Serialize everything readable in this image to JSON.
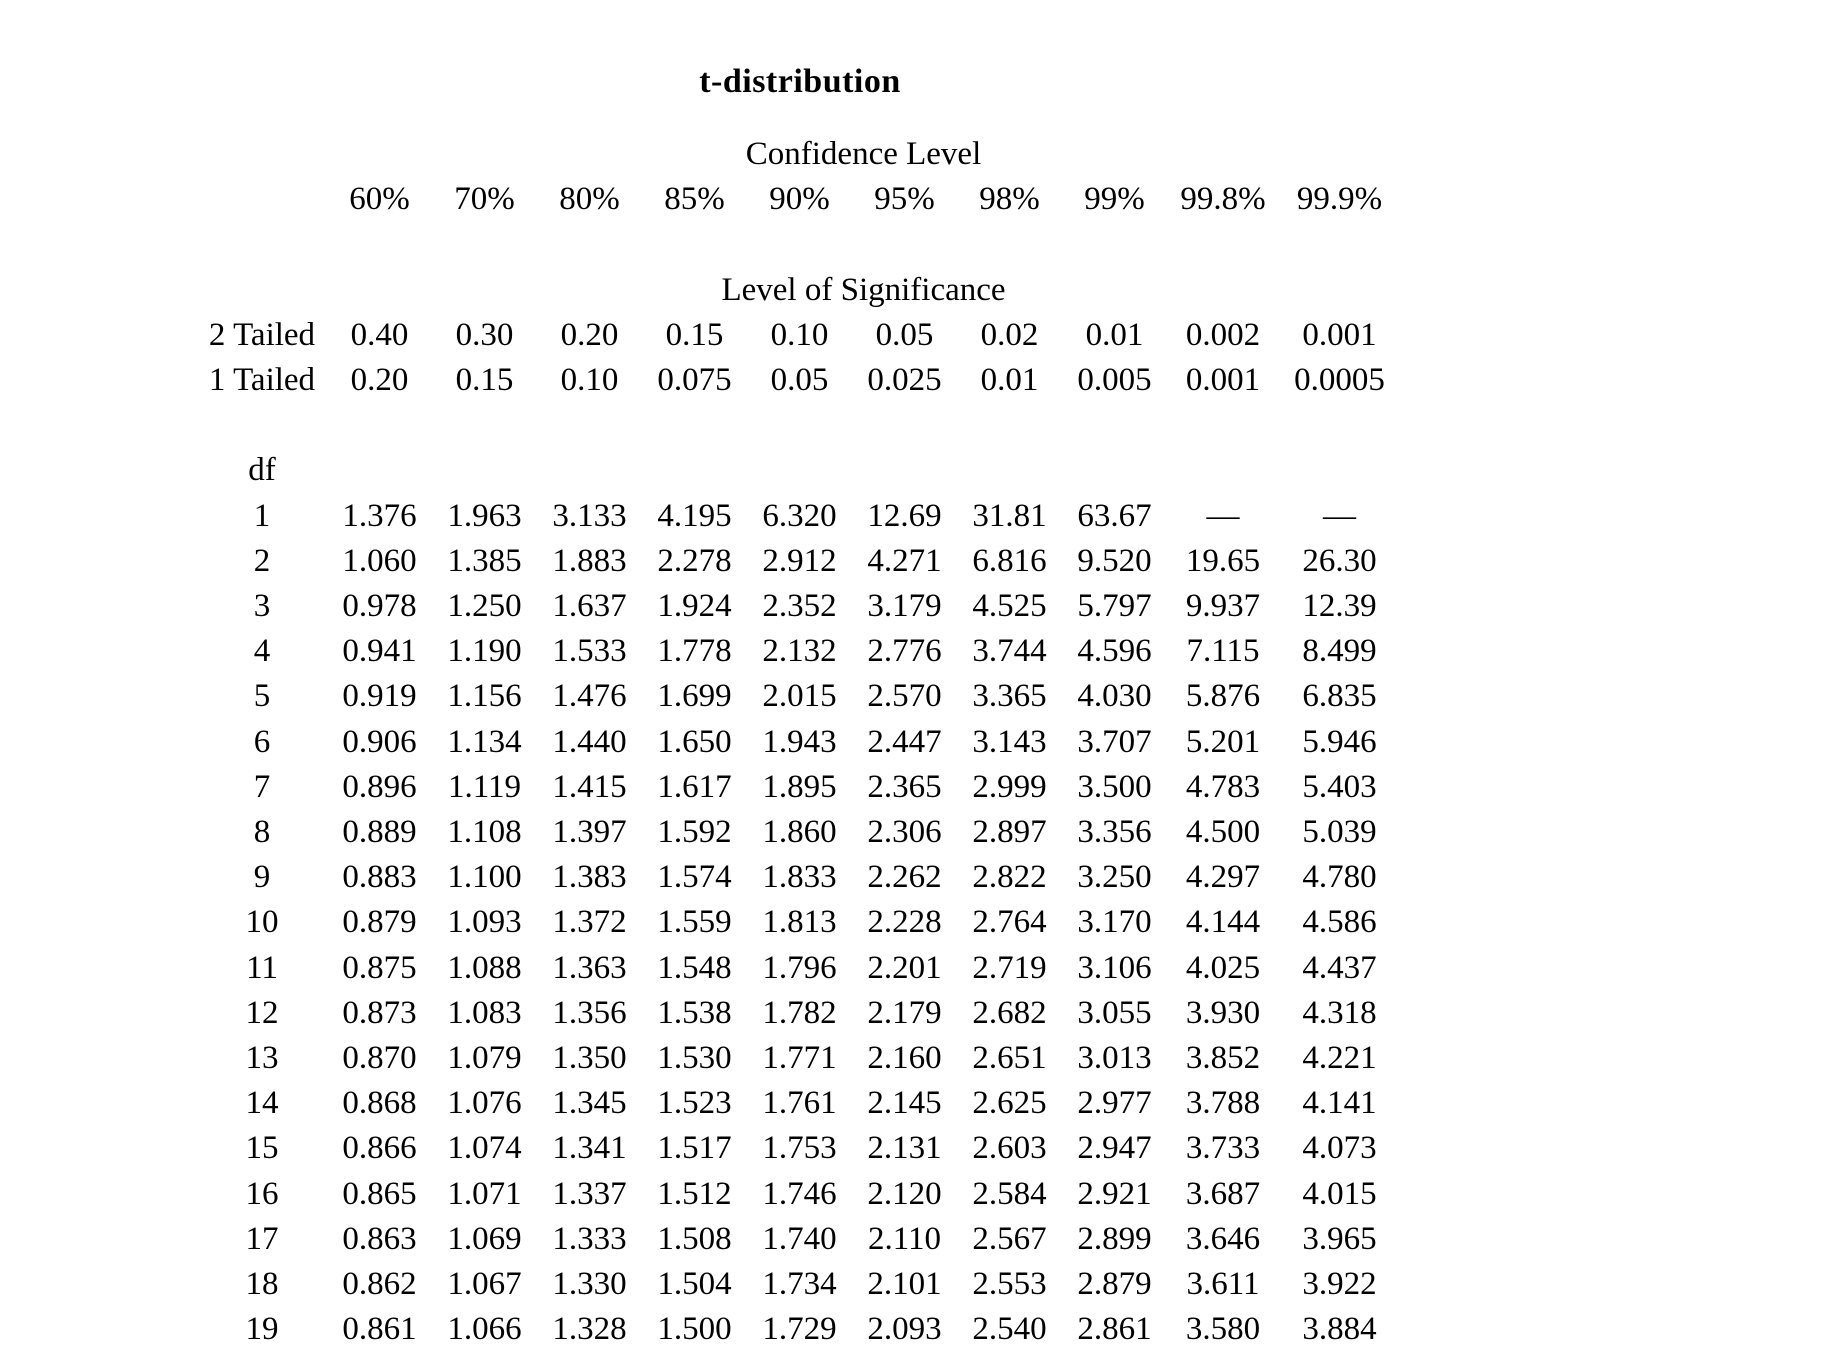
{
  "page": {
    "title": "t-distribution",
    "confidence_header": "Confidence Level",
    "significance_header": "Level of Significance",
    "df_label": "df",
    "text_color": "#000000",
    "background_color": "#ffffff"
  },
  "table": {
    "confidence_levels": [
      "60%",
      "70%",
      "80%",
      "85%",
      "90%",
      "95%",
      "98%",
      "99%",
      "99.8%",
      "99.9%"
    ],
    "two_tailed": {
      "label": "2 Tailed",
      "values": [
        "0.40",
        "0.30",
        "0.20",
        "0.15",
        "0.10",
        "0.05",
        "0.02",
        "0.01",
        "0.002",
        "0.001"
      ]
    },
    "one_tailed": {
      "label": "1 Tailed",
      "values": [
        "0.20",
        "0.15",
        "0.10",
        "0.075",
        "0.05",
        "0.025",
        "0.01",
        "0.005",
        "0.001",
        "0.0005"
      ]
    },
    "rows": [
      {
        "df": "1",
        "values": [
          "1.376",
          "1.963",
          "3.133",
          "4.195",
          "6.320",
          "12.69",
          "31.81",
          "63.67",
          "—",
          "—"
        ]
      },
      {
        "df": "2",
        "values": [
          "1.060",
          "1.385",
          "1.883",
          "2.278",
          "2.912",
          "4.271",
          "6.816",
          "9.520",
          "19.65",
          "26.30"
        ]
      },
      {
        "df": "3",
        "values": [
          "0.978",
          "1.250",
          "1.637",
          "1.924",
          "2.352",
          "3.179",
          "4.525",
          "5.797",
          "9.937",
          "12.39"
        ]
      },
      {
        "df": "4",
        "values": [
          "0.941",
          "1.190",
          "1.533",
          "1.778",
          "2.132",
          "2.776",
          "3.744",
          "4.596",
          "7.115",
          "8.499"
        ]
      },
      {
        "df": "5",
        "values": [
          "0.919",
          "1.156",
          "1.476",
          "1.699",
          "2.015",
          "2.570",
          "3.365",
          "4.030",
          "5.876",
          "6.835"
        ]
      },
      {
        "df": "6",
        "values": [
          "0.906",
          "1.134",
          "1.440",
          "1.650",
          "1.943",
          "2.447",
          "3.143",
          "3.707",
          "5.201",
          "5.946"
        ]
      },
      {
        "df": "7",
        "values": [
          "0.896",
          "1.119",
          "1.415",
          "1.617",
          "1.895",
          "2.365",
          "2.999",
          "3.500",
          "4.783",
          "5.403"
        ]
      },
      {
        "df": "8",
        "values": [
          "0.889",
          "1.108",
          "1.397",
          "1.592",
          "1.860",
          "2.306",
          "2.897",
          "3.356",
          "4.500",
          "5.039"
        ]
      },
      {
        "df": "9",
        "values": [
          "0.883",
          "1.100",
          "1.383",
          "1.574",
          "1.833",
          "2.262",
          "2.822",
          "3.250",
          "4.297",
          "4.780"
        ]
      },
      {
        "df": "10",
        "values": [
          "0.879",
          "1.093",
          "1.372",
          "1.559",
          "1.813",
          "2.228",
          "2.764",
          "3.170",
          "4.144",
          "4.586"
        ]
      },
      {
        "df": "11",
        "values": [
          "0.875",
          "1.088",
          "1.363",
          "1.548",
          "1.796",
          "2.201",
          "2.719",
          "3.106",
          "4.025",
          "4.437"
        ]
      },
      {
        "df": "12",
        "values": [
          "0.873",
          "1.083",
          "1.356",
          "1.538",
          "1.782",
          "2.179",
          "2.682",
          "3.055",
          "3.930",
          "4.318"
        ]
      },
      {
        "df": "13",
        "values": [
          "0.870",
          "1.079",
          "1.350",
          "1.530",
          "1.771",
          "2.160",
          "2.651",
          "3.013",
          "3.852",
          "4.221"
        ]
      },
      {
        "df": "14",
        "values": [
          "0.868",
          "1.076",
          "1.345",
          "1.523",
          "1.761",
          "2.145",
          "2.625",
          "2.977",
          "3.788",
          "4.141"
        ]
      },
      {
        "df": "15",
        "values": [
          "0.866",
          "1.074",
          "1.341",
          "1.517",
          "1.753",
          "2.131",
          "2.603",
          "2.947",
          "3.733",
          "4.073"
        ]
      },
      {
        "df": "16",
        "values": [
          "0.865",
          "1.071",
          "1.337",
          "1.512",
          "1.746",
          "2.120",
          "2.584",
          "2.921",
          "3.687",
          "4.015"
        ]
      },
      {
        "df": "17",
        "values": [
          "0.863",
          "1.069",
          "1.333",
          "1.508",
          "1.740",
          "2.110",
          "2.567",
          "2.899",
          "3.646",
          "3.965"
        ]
      },
      {
        "df": "18",
        "values": [
          "0.862",
          "1.067",
          "1.330",
          "1.504",
          "1.734",
          "2.101",
          "2.553",
          "2.879",
          "3.611",
          "3.922"
        ]
      },
      {
        "df": "19",
        "values": [
          "0.861",
          "1.066",
          "1.328",
          "1.500",
          "1.729",
          "2.093",
          "2.540",
          "2.861",
          "3.580",
          "3.884"
        ]
      }
    ]
  }
}
